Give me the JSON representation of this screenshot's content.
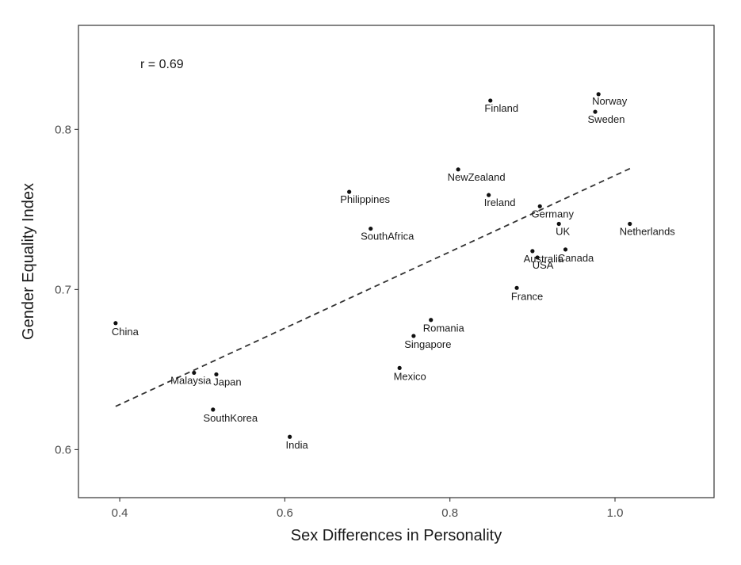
{
  "chart_data": {
    "type": "scatter",
    "title": "",
    "xlabel": "Sex Differences in Personality",
    "ylabel": "Gender Equality Index",
    "xlim": [
      0.35,
      1.12
    ],
    "ylim": [
      0.57,
      0.865
    ],
    "xticks": [
      0.4,
      0.6,
      0.8,
      1.0
    ],
    "xtick_labels": [
      "0.4",
      "0.6",
      "0.8",
      "1.0"
    ],
    "yticks": [
      0.6,
      0.7,
      0.8
    ],
    "ytick_labels": [
      "0.6",
      "0.7",
      "0.8"
    ],
    "grid": false,
    "annotation": "r = 0.69",
    "trendline": {
      "style": "dashed",
      "x": [
        0.395,
        1.02
      ],
      "y": [
        0.627,
        0.776
      ]
    },
    "points": [
      {
        "label": "Norway",
        "x": 0.98,
        "y": 0.822
      },
      {
        "label": "Sweden",
        "x": 0.976,
        "y": 0.811
      },
      {
        "label": "Finland",
        "x": 0.849,
        "y": 0.818
      },
      {
        "label": "NewZealand",
        "x": 0.81,
        "y": 0.775
      },
      {
        "label": "Ireland",
        "x": 0.847,
        "y": 0.759
      },
      {
        "label": "Philippines",
        "x": 0.678,
        "y": 0.761
      },
      {
        "label": "Germany",
        "x": 0.909,
        "y": 0.752
      },
      {
        "label": "UK",
        "x": 0.932,
        "y": 0.741
      },
      {
        "label": "Netherlands",
        "x": 1.018,
        "y": 0.741
      },
      {
        "label": "SouthAfrica",
        "x": 0.704,
        "y": 0.738
      },
      {
        "label": "Australia",
        "x": 0.9,
        "y": 0.724
      },
      {
        "label": "Canada",
        "x": 0.94,
        "y": 0.725
      },
      {
        "label": "USA",
        "x": 0.906,
        "y": 0.72
      },
      {
        "label": "France",
        "x": 0.881,
        "y": 0.701
      },
      {
        "label": "Romania",
        "x": 0.777,
        "y": 0.681
      },
      {
        "label": "Singapore",
        "x": 0.756,
        "y": 0.671
      },
      {
        "label": "China",
        "x": 0.395,
        "y": 0.679
      },
      {
        "label": "Mexico",
        "x": 0.739,
        "y": 0.651
      },
      {
        "label": "Malaysia",
        "x": 0.49,
        "y": 0.648
      },
      {
        "label": "Japan",
        "x": 0.517,
        "y": 0.647
      },
      {
        "label": "SouthKorea",
        "x": 0.513,
        "y": 0.625
      },
      {
        "label": "India",
        "x": 0.606,
        "y": 0.608
      }
    ]
  }
}
